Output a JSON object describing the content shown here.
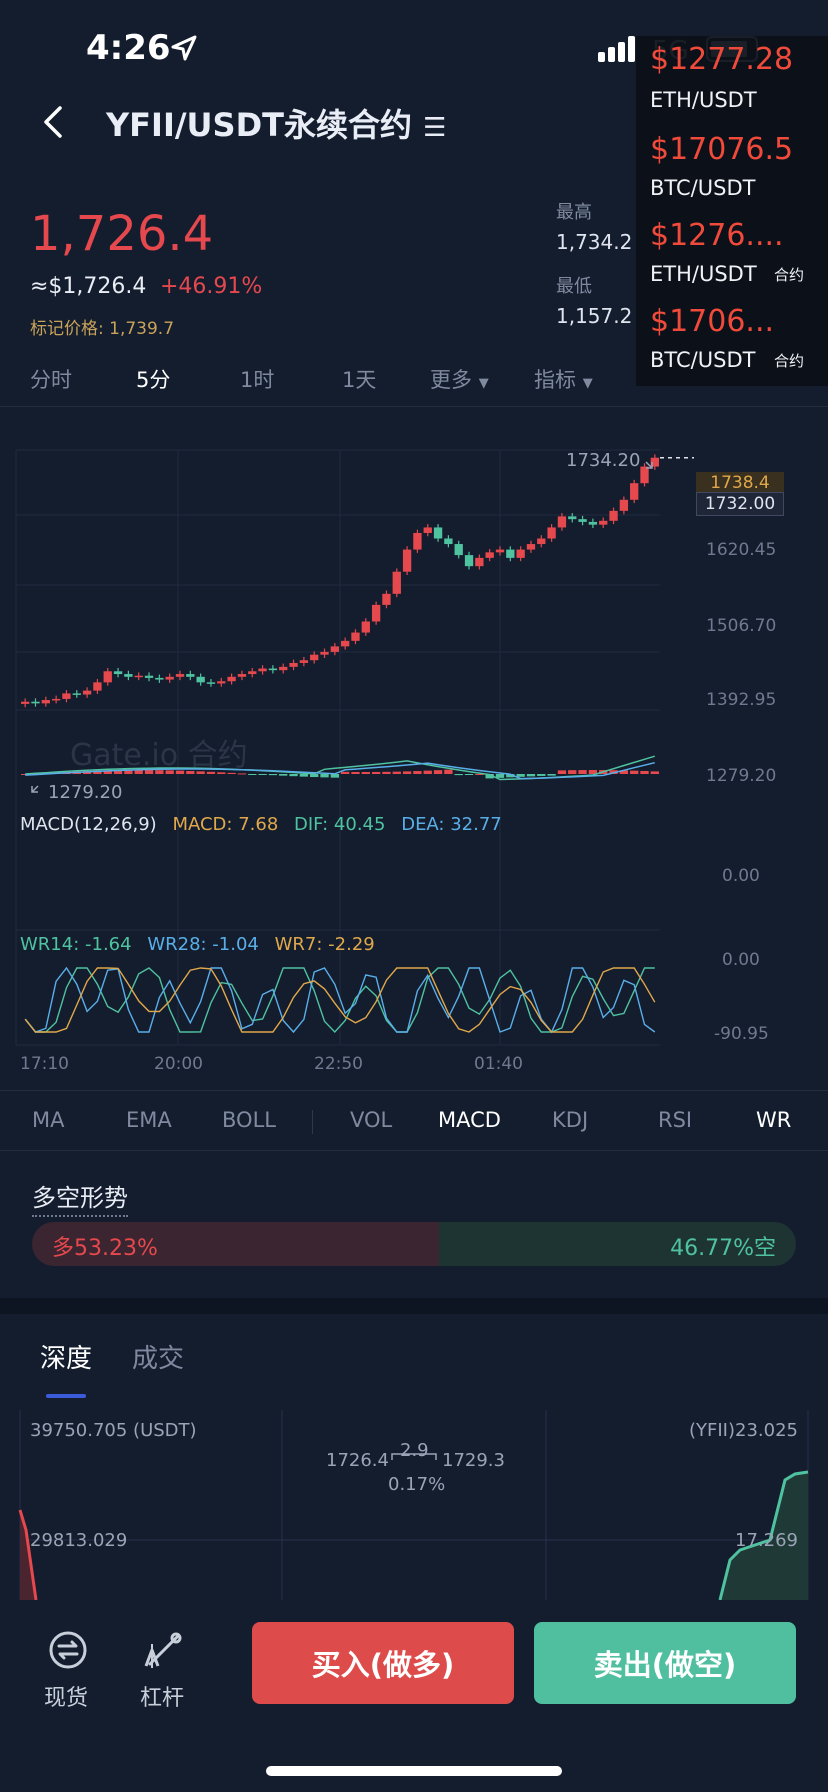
{
  "status_bar": {
    "time": "4:26",
    "network": "5G"
  },
  "header": {
    "title": "YFII/USDT永续合约"
  },
  "price": {
    "last": "1,726.4",
    "usd_approx": "≈$1,726.4",
    "change_pct": "+46.91%",
    "mark_price": "标记价格: 1,739.7"
  },
  "stats": {
    "high_label": "最高",
    "high_value": "1,734.2",
    "low_label": "最低",
    "low_value": "1,157.2"
  },
  "overlay": [
    {
      "price": "$1277.28",
      "pair": "ETH/USDT",
      "tag": ""
    },
    {
      "price": "$17076.5",
      "pair": "BTC/USDT",
      "tag": ""
    },
    {
      "price": "$1276....",
      "pair": "ETH/USDT",
      "tag": "合约"
    },
    {
      "price": "$1706...",
      "pair": "BTC/USDT",
      "tag": "合约"
    }
  ],
  "timeframes": [
    {
      "label": "分时"
    },
    {
      "label": "5分"
    },
    {
      "label": "1时"
    },
    {
      "label": "1天"
    },
    {
      "label": "更多"
    },
    {
      "label": "指标"
    }
  ],
  "chart_data": {
    "type": "candlestick",
    "symbol": "YFII/USDT",
    "interval": "5分",
    "y_ticks": [
      "1620.45",
      "1506.70",
      "1392.95",
      "1279.20"
    ],
    "ylim": [
      1270,
      1740
    ],
    "x_ticks": [
      "17:10",
      "20:00",
      "22:50",
      "01:40"
    ],
    "price_high_marker": "1734.20",
    "price_low_marker": "1279.20",
    "current_tag_top": "1738.4",
    "current_tag_bottom": "1732.00",
    "close_series": [
      1285,
      1282,
      1288,
      1290,
      1300,
      1298,
      1305,
      1320,
      1340,
      1335,
      1330,
      1332,
      1328,
      1325,
      1330,
      1335,
      1330,
      1320,
      1318,
      1322,
      1330,
      1335,
      1340,
      1345,
      1342,
      1348,
      1355,
      1360,
      1370,
      1375,
      1385,
      1395,
      1410,
      1430,
      1460,
      1480,
      1520,
      1560,
      1590,
      1600,
      1580,
      1570,
      1550,
      1530,
      1545,
      1555,
      1560,
      1545,
      1560,
      1570,
      1580,
      1600,
      1620,
      1615,
      1610,
      1605,
      1612,
      1630,
      1650,
      1680,
      1710,
      1726
    ],
    "macd": {
      "label": "MACD(12,26,9)",
      "macd": "MACD: 7.68",
      "dif": "DIF: 40.45",
      "dea": "DEA: 32.77",
      "zero_label": "0.00"
    },
    "wr": {
      "wr14": "WR14: -1.64",
      "wr28": "WR28: -1.04",
      "wr7": "WR7: -2.29",
      "top_label": "0.00",
      "bottom_label": "-90.95"
    },
    "watermark": "Gate.io 合约"
  },
  "indicator_tabs": [
    {
      "label": "MA"
    },
    {
      "label": "EMA"
    },
    {
      "label": "BOLL"
    },
    {
      "label": "VOL"
    },
    {
      "label": "MACD"
    },
    {
      "label": "KDJ"
    },
    {
      "label": "RSI"
    },
    {
      "label": "WR"
    }
  ],
  "sentiment": {
    "title": "多空形势",
    "long_text": "多53.23%",
    "short_text": "46.77%空",
    "long_pct": 53.23
  },
  "depth": {
    "tab_depth": "深度",
    "tab_trades": "成交",
    "top_left": "39750.705 (USDT)",
    "top_right": "(YFII)23.025",
    "mid_left": "29813.029",
    "mid_right": "17.269",
    "bid": "1726.4",
    "spread": "2.9",
    "ask": "1729.3",
    "spread_pct": "0.17%"
  },
  "bottom": {
    "spot_label": "现货",
    "leverage_label": "杠杆",
    "buy_label": "买入(做多)",
    "sell_label": "卖出(做空)"
  },
  "colors": {
    "up": "#e5484d",
    "down": "#4fc2a0",
    "bg": "#141d2e",
    "accent": "#3b5bdb"
  }
}
